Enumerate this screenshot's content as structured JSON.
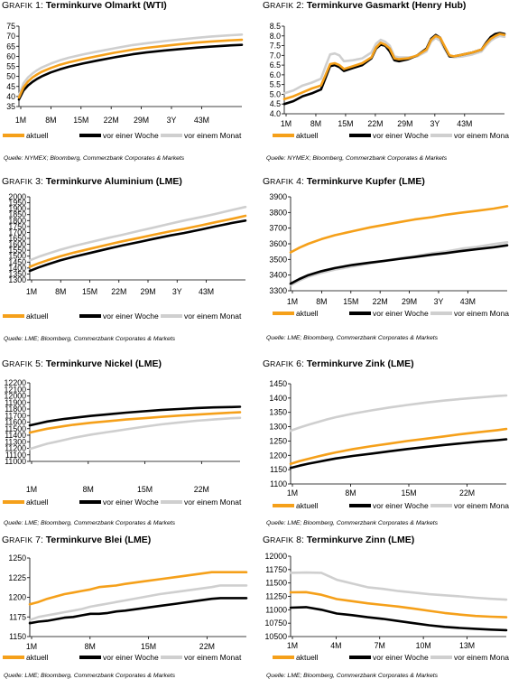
{
  "colors": {
    "aktuell": "#F5A01A",
    "woche": "#000000",
    "monat": "#CFCFCF"
  },
  "legend_labels": [
    "aktuell",
    "vor einer Woche",
    "vor einem Monat"
  ],
  "panels": [
    {
      "prefix": "GRAFIK",
      "number": "1",
      "title": "Terminkurve Olmarkt (WTI)",
      "source": "Quelle: NYMEX; Bloomberg, Commerzbank Corporates & Markets",
      "chart_data": {
        "type": "line",
        "xticks": [
          "1M",
          "8M",
          "15M",
          "22M",
          "29M",
          "3Y",
          "43M"
        ],
        "yticks": [
          "35",
          "40",
          "45",
          "50",
          "55",
          "60",
          "65",
          "70",
          "75"
        ],
        "ylim": [
          35,
          75
        ],
        "x": [
          1,
          2,
          3,
          4,
          5,
          6,
          8,
          10,
          12,
          15,
          18,
          22,
          26,
          29,
          33,
          36,
          40,
          43,
          47,
          50
        ],
        "series": [
          {
            "name": "aktuell",
            "values": [
              39.5,
              44.5,
              47.5,
              49.5,
              51,
              52.3,
              54.2,
              55.8,
              57.0,
              58.6,
              60.0,
              61.8,
              63.3,
              64.2,
              65.2,
              65.9,
              66.8,
              67.3,
              67.9,
              68.2
            ]
          },
          {
            "name": "vor einer Woche",
            "values": [
              38.5,
              43,
              45.5,
              47.3,
              48.8,
              50.0,
              52.0,
              53.5,
              54.8,
              56.4,
              57.8,
              59.5,
              61.0,
              61.9,
              62.9,
              63.5,
              64.3,
              64.8,
              65.4,
              65.7
            ]
          },
          {
            "name": "vor einem Monat",
            "values": [
              40.5,
              46.5,
              49.5,
              51.5,
              53.1,
              54.4,
              56.4,
              58.0,
              59.3,
              60.9,
              62.3,
              64.0,
              65.6,
              66.5,
              67.6,
              68.3,
              69.2,
              69.8,
              70.4,
              70.8
            ]
          }
        ]
      }
    },
    {
      "prefix": "GRAFIK",
      "number": "2",
      "title": "Terminkurve Gasmarkt (Henry Hub)",
      "source": "Quelle: NYMEX; Bloomberg, Commerzbank Corporates & Markets",
      "chart_data": {
        "type": "line",
        "xticks": [
          "1M",
          "8M",
          "15M",
          "22M",
          "29M",
          "3Y",
          "43M"
        ],
        "yticks": [
          "4.0",
          "4.5",
          "5.0",
          "5.5",
          "6.0",
          "6.5",
          "7.0",
          "7.5",
          "8.0",
          "8.5"
        ],
        "ylim": [
          4.0,
          8.5
        ],
        "x": [
          1,
          3,
          5,
          7,
          9,
          10,
          11,
          12,
          13,
          14,
          16,
          18,
          20,
          21,
          22,
          23,
          24,
          25,
          26,
          28,
          30,
          32,
          33,
          34,
          35,
          36,
          37,
          38,
          40,
          42,
          44,
          45,
          46,
          47,
          48,
          49
        ],
        "series": [
          {
            "name": "aktuell",
            "values": [
              4.75,
              4.9,
              5.1,
              5.3,
              5.45,
              6.0,
              6.55,
              6.6,
              6.5,
              6.3,
              6.45,
              6.6,
              6.9,
              7.4,
              7.65,
              7.55,
              7.35,
              6.85,
              6.8,
              6.85,
              7.0,
              7.3,
              7.8,
              8.0,
              7.9,
              7.45,
              7.0,
              6.95,
              7.05,
              7.15,
              7.3,
              7.6,
              7.85,
              8.0,
              8.1,
              8.05
            ]
          },
          {
            "name": "vor einer Woche",
            "values": [
              4.5,
              4.65,
              4.9,
              5.05,
              5.25,
              5.85,
              6.45,
              6.5,
              6.4,
              6.2,
              6.35,
              6.5,
              6.85,
              7.35,
              7.55,
              7.5,
              7.2,
              6.75,
              6.7,
              6.8,
              7.0,
              7.35,
              7.85,
              8.05,
              7.9,
              7.4,
              6.95,
              6.95,
              7.05,
              7.15,
              7.3,
              7.65,
              7.95,
              8.1,
              8.15,
              8.1
            ]
          },
          {
            "name": "vor einem Monat",
            "values": [
              5.05,
              5.2,
              5.45,
              5.6,
              5.8,
              6.45,
              7.05,
              7.1,
              7.0,
              6.7,
              6.75,
              6.85,
              7.15,
              7.6,
              7.8,
              7.7,
              7.5,
              6.95,
              6.9,
              6.9,
              6.95,
              7.2,
              7.7,
              7.9,
              7.75,
              7.3,
              6.95,
              6.9,
              6.95,
              7.05,
              7.2,
              7.5,
              7.75,
              7.9,
              8.0,
              7.95
            ]
          }
        ]
      }
    },
    {
      "prefix": "GRAFIK",
      "number": "3",
      "title": "Terminkurve Aluminium (LME)",
      "source": "Quelle: LME; Bloomberg, Commerzbank Corporates & Markets",
      "chart_data": {
        "type": "line",
        "xticks": [
          "1M",
          "8M",
          "15M",
          "22M",
          "29M",
          "3Y",
          "43M"
        ],
        "yticks": [
          "1300",
          "1350",
          "1400",
          "1450",
          "1500",
          "1550",
          "1600",
          "1650",
          "1700",
          "1750",
          "1800",
          "1850",
          "1900",
          "1950",
          "2000"
        ],
        "ylim": [
          1300,
          2000
        ],
        "x": [
          1,
          3,
          5,
          8,
          11,
          15,
          19,
          22,
          26,
          29,
          33,
          36,
          40,
          43,
          47,
          50
        ],
        "series": [
          {
            "name": "aktuell",
            "values": [
              1410,
              1440,
              1465,
              1500,
              1530,
              1565,
              1600,
              1625,
              1655,
              1680,
              1710,
              1730,
              1760,
              1785,
              1815,
              1840
            ]
          },
          {
            "name": "vor einer Woche",
            "values": [
              1375,
              1405,
              1430,
              1465,
              1495,
              1530,
              1565,
              1590,
              1620,
              1645,
              1675,
              1695,
              1725,
              1750,
              1780,
              1800
            ]
          },
          {
            "name": "vor einem Monat",
            "values": [
              1465,
              1495,
              1520,
              1555,
              1585,
              1620,
              1655,
              1680,
              1715,
              1740,
              1775,
              1800,
              1830,
              1855,
              1890,
              1915
            ]
          }
        ]
      }
    },
    {
      "prefix": "GRAFIK",
      "number": "4",
      "title": "Terminkurve Kupfer (LME)",
      "source": "Quelle: LME; Bloomberg, Commerzbank Corporates & Markets",
      "chart_data": {
        "type": "line",
        "xticks": [
          "1M",
          "8M",
          "15M",
          "22M",
          "29M",
          "3Y",
          "43M"
        ],
        "yticks": [
          "3300",
          "3400",
          "3500",
          "3600",
          "3700",
          "3800",
          "3900"
        ],
        "ylim": [
          3300,
          3900
        ],
        "x": [
          1,
          3,
          5,
          8,
          11,
          15,
          19,
          22,
          26,
          29,
          33,
          36,
          40,
          43,
          47,
          50
        ],
        "series": [
          {
            "name": "aktuell",
            "values": [
              3545,
              3575,
              3600,
              3630,
              3655,
              3680,
              3705,
              3720,
              3740,
              3755,
              3770,
              3785,
              3800,
              3810,
              3825,
              3840
            ]
          },
          {
            "name": "vor einer Woche",
            "values": [
              3345,
              3375,
              3400,
              3425,
              3445,
              3465,
              3480,
              3490,
              3505,
              3515,
              3530,
              3540,
              3555,
              3565,
              3578,
              3590
            ]
          },
          {
            "name": "vor einem Monat",
            "values": [
              3335,
              3365,
              3390,
              3415,
              3435,
              3455,
              3475,
              3490,
              3510,
              3520,
              3540,
              3550,
              3570,
              3580,
              3598,
              3610
            ]
          }
        ]
      }
    },
    {
      "prefix": "GRAFIK",
      "number": "5",
      "title": "Terminkurve Nickel (LME)",
      "source": "Quelle: LME; Bloomberg, Commerzbank Corporates & Markets",
      "chart_data": {
        "type": "line",
        "xticks": [
          "1M",
          "8M",
          "15M",
          "22M"
        ],
        "yticks": [
          "11000",
          "11100",
          "11200",
          "11300",
          "11400",
          "11500",
          "11600",
          "11700",
          "11800",
          "11900",
          "12000",
          "12100",
          "12200"
        ],
        "ylim": [
          11000,
          12200
        ],
        "x": [
          1,
          2,
          3,
          4,
          5,
          6,
          8,
          10,
          12,
          14,
          16,
          18,
          20,
          22,
          24,
          25
        ],
        "series": [
          {
            "name": "aktuell",
            "values": [
              11440,
              11470,
              11500,
              11520,
              11540,
              11560,
              11590,
              11615,
              11640,
              11660,
              11680,
              11700,
              11715,
              11730,
              11745,
              11750
            ]
          },
          {
            "name": "vor einer Woche",
            "values": [
              11550,
              11580,
              11610,
              11630,
              11650,
              11665,
              11695,
              11720,
              11745,
              11765,
              11785,
              11800,
              11815,
              11825,
              11830,
              11835
            ]
          },
          {
            "name": "vor einem Monat",
            "values": [
              11190,
              11230,
              11270,
              11300,
              11330,
              11360,
              11410,
              11450,
              11490,
              11530,
              11565,
              11595,
              11620,
              11640,
              11660,
              11665
            ]
          }
        ]
      }
    },
    {
      "prefix": "GRAFIK",
      "number": "6",
      "title": "Terminkurve Zink (LME)",
      "source": "Quelle: LME; Bloomberg, Commerzbank Corporates & Markets",
      "chart_data": {
        "type": "line",
        "xticks": [
          "1M",
          "8M",
          "15M",
          "22M"
        ],
        "yticks": [
          "1100",
          "1150",
          "1200",
          "1250",
          "1300",
          "1350",
          "1400",
          "1450"
        ],
        "ylim": [
          1100,
          1450
        ],
        "x": [
          1,
          2,
          3,
          4,
          5,
          6,
          8,
          10,
          12,
          14,
          16,
          18,
          20,
          22,
          24,
          25
        ],
        "series": [
          {
            "name": "aktuell",
            "values": [
              1170,
              1180,
              1188,
              1196,
              1203,
              1210,
              1222,
              1232,
              1241,
              1250,
              1258,
              1266,
              1274,
              1281,
              1288,
              1292
            ]
          },
          {
            "name": "vor einer Woche",
            "values": [
              1156,
              1164,
              1171,
              1177,
              1183,
              1189,
              1198,
              1206,
              1214,
              1222,
              1229,
              1236,
              1242,
              1248,
              1253,
              1256
            ]
          },
          {
            "name": "vor einem Monat",
            "values": [
              1286,
              1297,
              1307,
              1316,
              1325,
              1333,
              1346,
              1357,
              1367,
              1376,
              1384,
              1391,
              1397,
              1402,
              1407,
              1409
            ]
          }
        ]
      }
    },
    {
      "prefix": "GRAFIK",
      "number": "7",
      "title": "Terminkurve Blei (LME)",
      "source": "Quelle: LME; Bloomberg, Commerzbank Corporates & Markets",
      "chart_data": {
        "type": "line",
        "xticks": [
          "1M",
          "8M",
          "15M",
          "22M"
        ],
        "yticks": [
          "1150",
          "1175",
          "1200",
          "1225",
          "1250"
        ],
        "ylim": [
          1150,
          1250
        ],
        "x": [
          1,
          2,
          3,
          4,
          5,
          6,
          7,
          8,
          9,
          10,
          11,
          12,
          14,
          16,
          18,
          20,
          22,
          23,
          24,
          25,
          26
        ],
        "series": [
          {
            "name": "aktuell",
            "values": [
              1191,
              1194,
              1198,
              1201,
              1204,
              1206,
              1208,
              1210,
              1213,
              1214,
              1215,
              1217,
              1220,
              1223,
              1226,
              1229,
              1232,
              1232,
              1232,
              1232,
              1232
            ]
          },
          {
            "name": "vor einer Woche",
            "values": [
              1167,
              1169,
              1170,
              1172,
              1174,
              1175,
              1177,
              1179,
              1179,
              1180,
              1182,
              1183,
              1186,
              1189,
              1192,
              1195,
              1198,
              1199,
              1199,
              1199,
              1199
            ]
          },
          {
            "name": "vor einem Monat",
            "values": [
              1171,
              1175,
              1177,
              1179,
              1181,
              1183,
              1185,
              1188,
              1190,
              1192,
              1194,
              1196,
              1200,
              1204,
              1207,
              1210,
              1213,
              1215,
              1215,
              1215,
              1215
            ]
          }
        ]
      }
    },
    {
      "prefix": "GRAFIK",
      "number": "8",
      "title": "Terminkurve Zinn (LME)",
      "source": "Quelle: LME; Bloomberg, Commerzbank Corporates & Markets",
      "chart_data": {
        "type": "line",
        "xticks": [
          "1M",
          "4M",
          "7M",
          "10M",
          "13M"
        ],
        "yticks": [
          "10500",
          "10750",
          "11000",
          "11250",
          "11500",
          "11750",
          "12000"
        ],
        "ylim": [
          10500,
          12000
        ],
        "x": [
          1,
          2,
          3,
          4,
          5,
          6,
          7,
          8,
          9,
          10,
          11,
          12,
          13,
          14,
          15
        ],
        "series": [
          {
            "name": "aktuell",
            "values": [
              11325,
              11330,
              11280,
              11200,
              11160,
              11120,
              11090,
              11060,
              11020,
              10980,
              10940,
              10910,
              10885,
              10870,
              10860
            ]
          },
          {
            "name": "vor einer Woche",
            "values": [
              11040,
              11050,
              11000,
              10930,
              10900,
              10860,
              10830,
              10790,
              10750,
              10710,
              10680,
              10660,
              10645,
              10630,
              10620
            ]
          },
          {
            "name": "vor einem Monat",
            "values": [
              11690,
              11695,
              11690,
              11560,
              11490,
              11420,
              11390,
              11350,
              11320,
              11290,
              11270,
              11250,
              11225,
              11205,
              11190
            ]
          }
        ]
      }
    }
  ]
}
